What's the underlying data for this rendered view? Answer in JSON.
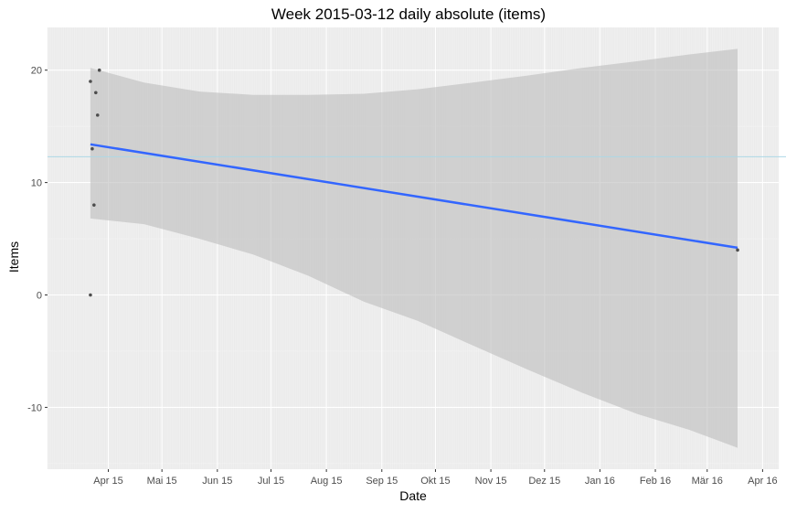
{
  "chart_data": {
    "type": "scatter",
    "title": "Week 2015-03-12 daily absolute (items)",
    "xlabel": "Date",
    "ylabel": "Items",
    "x_axis_kind": "date",
    "xlim": [
      "2015-03-12",
      "2016-04-24"
    ],
    "ylim": [
      -15.5,
      23.8
    ],
    "x_ticks": [
      {
        "date": "2015-04-15",
        "label": "Apr 15"
      },
      {
        "date": "2015-05-15",
        "label": "Mai 15"
      },
      {
        "date": "2015-06-15",
        "label": "Jun 15"
      },
      {
        "date": "2015-07-15",
        "label": "Jul 15"
      },
      {
        "date": "2015-08-15",
        "label": "Aug 15"
      },
      {
        "date": "2015-09-15",
        "label": "Sep 15"
      },
      {
        "date": "2015-10-15",
        "label": "Okt 15"
      },
      {
        "date": "2015-11-15",
        "label": "Nov 15"
      },
      {
        "date": "2015-12-15",
        "label": "Dez 15"
      },
      {
        "date": "2016-01-15",
        "label": "Jan 16"
      },
      {
        "date": "2016-02-15",
        "label": "Feb 16"
      },
      {
        "date": "2016-03-15",
        "label": "Mär 16"
      },
      {
        "date": "2016-04-15",
        "label": "Apr 16"
      }
    ],
    "y_ticks": [
      {
        "value": 20,
        "label": "20"
      },
      {
        "value": 10,
        "label": "10"
      },
      {
        "value": 0,
        "label": "0"
      },
      {
        "value": -10,
        "label": "-10"
      }
    ],
    "grid": true,
    "legend": "none",
    "points": [
      {
        "x": "2015-04-05",
        "y": 0
      },
      {
        "x": "2015-04-05",
        "y": 19
      },
      {
        "x": "2015-04-06",
        "y": 13
      },
      {
        "x": "2015-04-07",
        "y": 8
      },
      {
        "x": "2015-04-08",
        "y": 18
      },
      {
        "x": "2015-04-09",
        "y": 16
      },
      {
        "x": "2015-04-10",
        "y": 20
      },
      {
        "x": "2016-04-01",
        "y": 4
      }
    ],
    "trend": {
      "method": "linear",
      "start": {
        "x": "2015-04-05",
        "y": 13.4
      },
      "end": {
        "x": "2016-04-01",
        "y": 4.2
      },
      "ribbon": [
        {
          "x": "2015-04-05",
          "lower": 6.8,
          "upper": 20.2
        },
        {
          "x": "2015-05-05",
          "lower": 6.3,
          "upper": 18.9
        },
        {
          "x": "2015-06-05",
          "lower": 5.0,
          "upper": 18.1
        },
        {
          "x": "2015-07-05",
          "lower": 3.6,
          "upper": 17.8
        },
        {
          "x": "2015-08-05",
          "lower": 1.7,
          "upper": 17.8
        },
        {
          "x": "2015-09-05",
          "lower": -0.6,
          "upper": 17.9
        },
        {
          "x": "2015-10-05",
          "lower": -2.3,
          "upper": 18.3
        },
        {
          "x": "2015-11-05",
          "lower": -4.5,
          "upper": 18.9
        },
        {
          "x": "2015-12-05",
          "lower": -6.6,
          "upper": 19.5
        },
        {
          "x": "2016-01-05",
          "lower": -8.7,
          "upper": 20.2
        },
        {
          "x": "2016-02-05",
          "lower": -10.6,
          "upper": 20.8
        },
        {
          "x": "2016-03-05",
          "lower": -12.0,
          "upper": 21.4
        },
        {
          "x": "2016-04-01",
          "lower": -13.6,
          "upper": 21.9
        }
      ]
    },
    "hline": {
      "y": 12.3
    },
    "colors": {
      "panel_bg": "#ebebeb",
      "grid_major": "#ffffff",
      "grid_minor": "#f3f3f3",
      "trend_line": "#3366ff",
      "ribbon": "#bdbdbd",
      "points": "#4d4d4d",
      "hline": "#add8e6",
      "axis_text": "#4d4d4d"
    }
  }
}
